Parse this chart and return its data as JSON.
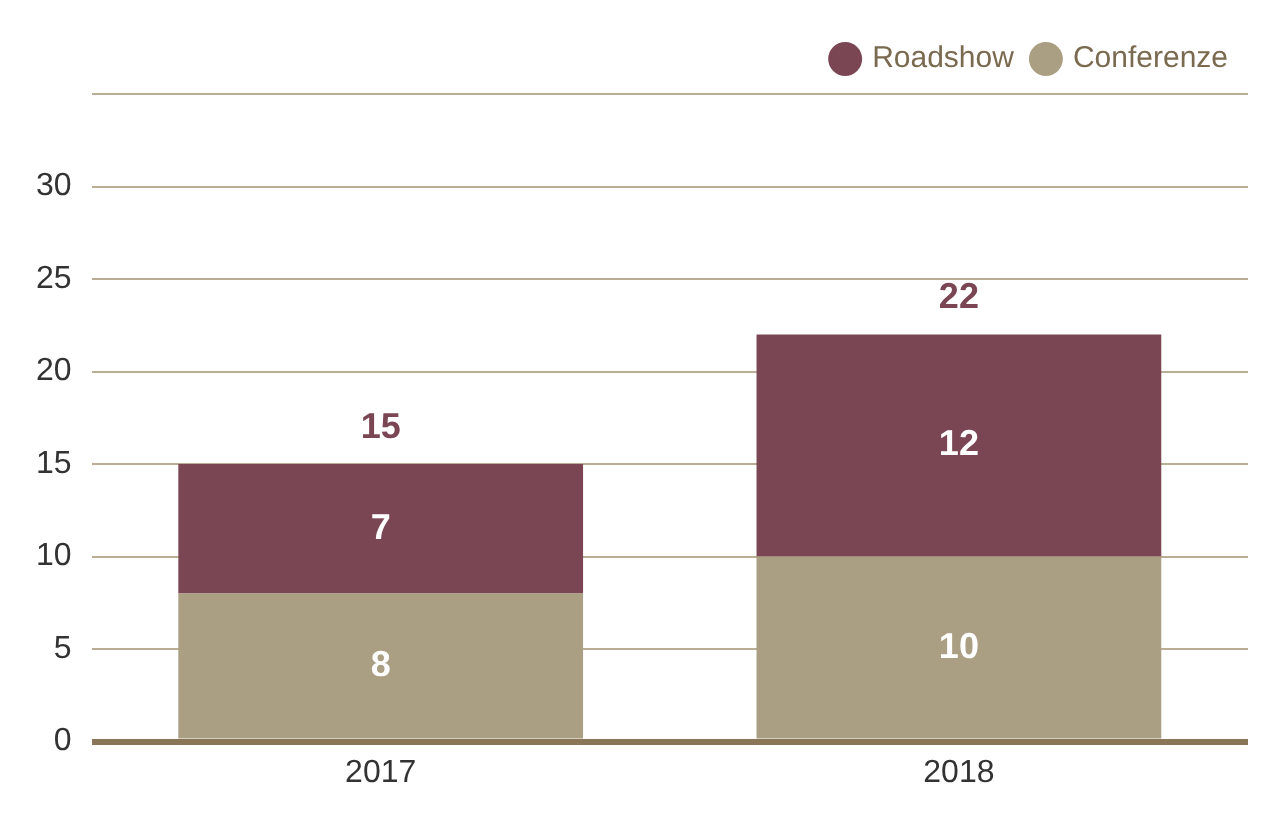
{
  "chart_data": {
    "type": "bar",
    "stacked": true,
    "categories": [
      "2017",
      "2018"
    ],
    "series": [
      {
        "name": "Conferenze",
        "color": "#ab9f83",
        "values": [
          8,
          10
        ]
      },
      {
        "name": "Roadshow",
        "color": "#7b4654",
        "values": [
          7,
          12
        ]
      }
    ],
    "ylim": [
      0,
      35
    ],
    "yticks": [
      0,
      5,
      10,
      15,
      20,
      25,
      30,
      {
        "value": 35,
        "label": null
      }
    ],
    "grid": "y",
    "legend": "top right",
    "data_labels": true,
    "totals": [
      "15",
      "22"
    ]
  }
}
